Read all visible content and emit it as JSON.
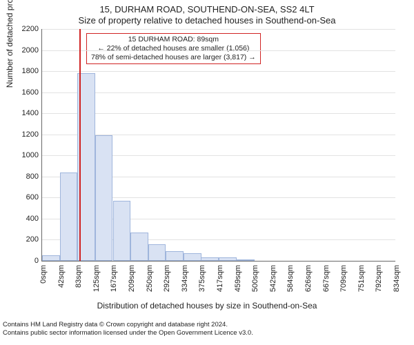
{
  "title_line1": "15, DURHAM ROAD, SOUTHEND-ON-SEA, SS2 4LT",
  "title_line2": "Size of property relative to detached houses in Southend-on-Sea",
  "xlabel": "Distribution of detached houses by size in Southend-on-Sea",
  "ylabel": "Number of detached properties",
  "footer": "Contains HM Land Registry data © Crown copyright and database right 2024.\nContains public sector information licensed under the Open Government Licence v3.0.",
  "chart": {
    "type": "histogram",
    "background_color": "#ffffff",
    "axis_color": "#666666",
    "grid_color": "#e2e2e2",
    "bar_fill": "#d9e2f3",
    "bar_border": "#9fb5dc",
    "ylim": [
      0,
      2200
    ],
    "ytick_step": 200,
    "x_bin_width": 41.66,
    "xticks": [
      "0sqm",
      "42sqm",
      "83sqm",
      "125sqm",
      "167sqm",
      "209sqm",
      "250sqm",
      "292sqm",
      "334sqm",
      "375sqm",
      "417sqm",
      "459sqm",
      "500sqm",
      "542sqm",
      "584sqm",
      "626sqm",
      "667sqm",
      "709sqm",
      "751sqm",
      "792sqm",
      "834sqm"
    ],
    "bars": [
      {
        "bin_start": 0,
        "count": 50
      },
      {
        "bin_start": 42,
        "count": 840
      },
      {
        "bin_start": 83,
        "count": 1780
      },
      {
        "bin_start": 125,
        "count": 1190
      },
      {
        "bin_start": 167,
        "count": 570
      },
      {
        "bin_start": 209,
        "count": 270
      },
      {
        "bin_start": 250,
        "count": 160
      },
      {
        "bin_start": 292,
        "count": 90
      },
      {
        "bin_start": 334,
        "count": 70
      },
      {
        "bin_start": 375,
        "count": 30
      },
      {
        "bin_start": 417,
        "count": 30
      },
      {
        "bin_start": 459,
        "count": 10
      }
    ],
    "marker": {
      "value_sqm": 89,
      "color": "#d02222"
    },
    "infobox": {
      "border_color": "#d02222",
      "lines": [
        "15 DURHAM ROAD: 89sqm",
        "← 22% of detached houses are smaller (1,056)",
        "78% of semi-detached houses are larger (3,817) →"
      ]
    },
    "title_fontsize": 13,
    "label_fontsize": 12,
    "tick_fontsize": 11
  }
}
